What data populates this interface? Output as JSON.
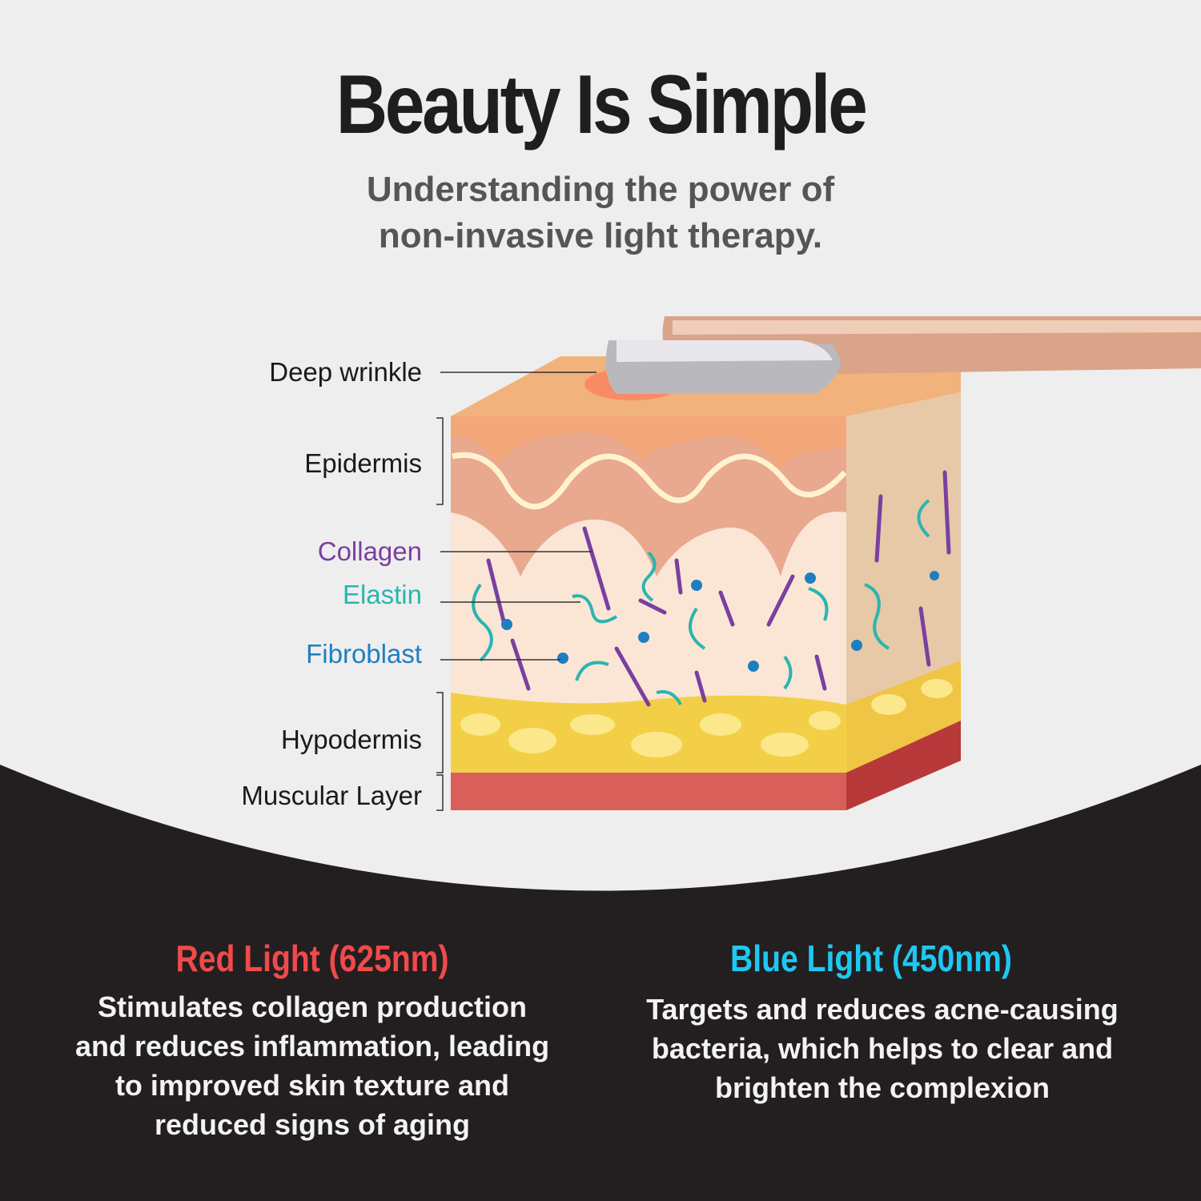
{
  "header": {
    "title": "Beauty Is Simple",
    "subtitle_line1": "Understanding the power of",
    "subtitle_line2": "non-invasive light therapy."
  },
  "diagram": {
    "labels": [
      {
        "text": "Deep wrinkle",
        "color": "#1a1a1a"
      },
      {
        "text": "Epidermis",
        "color": "#1a1a1a"
      },
      {
        "text": "Collagen",
        "color": "#7b3fa0"
      },
      {
        "text": "Elastin",
        "color": "#2bb5b0"
      },
      {
        "text": "Fibroblast",
        "color": "#1e7fc0"
      },
      {
        "text": "Hypodermis",
        "color": "#1a1a1a"
      },
      {
        "text": "Muscular Layer",
        "color": "#1a1a1a"
      }
    ]
  },
  "features": [
    {
      "heading": "Red Light (625nm)",
      "color": "#f04a4a",
      "lines": [
        "Stimulates collagen production",
        "and reduces inflammation, leading",
        "to improved skin texture and",
        "reduced signs of aging"
      ]
    },
    {
      "heading": "Blue Light (450nm)",
      "color": "#1ec8f0",
      "lines": [
        "Targets and reduces acne-causing",
        "bacteria, which helps to clear and",
        "brighten the complexion"
      ]
    }
  ],
  "colors": {
    "dark_band": "#231f20",
    "background": "#efeeee"
  }
}
